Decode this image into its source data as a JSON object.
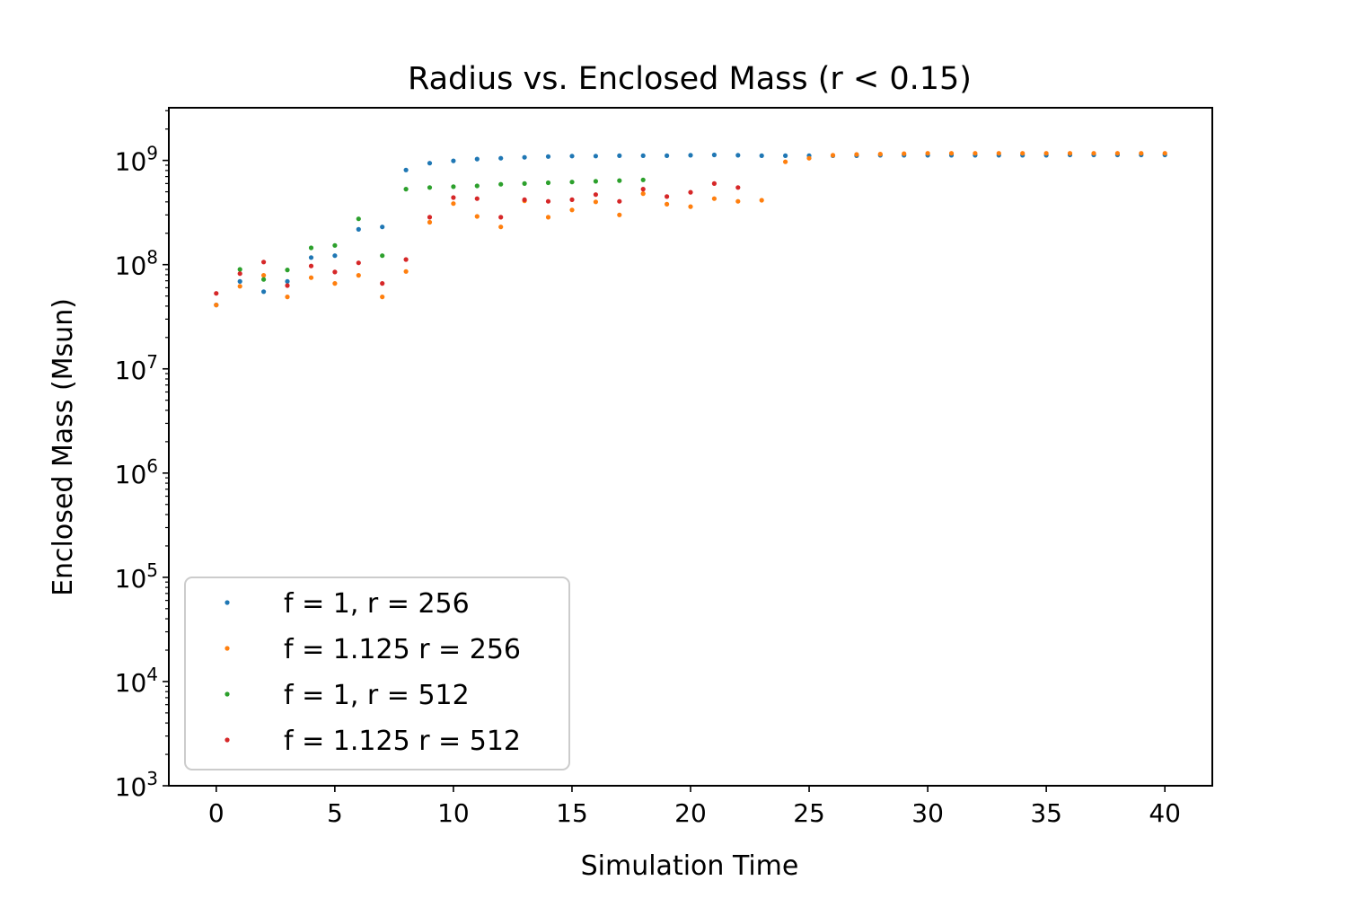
{
  "chart_data": {
    "type": "scatter",
    "title": "Radius vs. Enclosed Mass (r < 0.15)",
    "xlabel": "Simulation Time",
    "ylabel": "Enclosed Mass (Msun)",
    "xlim": [
      -2,
      42
    ],
    "ylim": [
      1000,
      3200000000
    ],
    "yscale": "log",
    "grid": false,
    "legend_position": "lower-left",
    "x_ticks": [
      0,
      5,
      10,
      15,
      20,
      25,
      30,
      35,
      40
    ],
    "x_tick_labels": [
      "0",
      "5",
      "10",
      "15",
      "20",
      "25",
      "30",
      "35",
      "40"
    ],
    "y_ticks": [
      1000,
      10000,
      100000,
      1000000,
      10000000,
      100000000,
      1000000000
    ],
    "y_tick_labels": [
      {
        "base": "10",
        "exp": "3"
      },
      {
        "base": "10",
        "exp": "4"
      },
      {
        "base": "10",
        "exp": "5"
      },
      {
        "base": "10",
        "exp": "6"
      },
      {
        "base": "10",
        "exp": "7"
      },
      {
        "base": "10",
        "exp": "8"
      },
      {
        "base": "10",
        "exp": "9"
      }
    ],
    "series": [
      {
        "name": "f = 1, r = 256",
        "color": "#1f77b4",
        "points": [
          [
            0,
            41000000
          ],
          [
            1,
            69000000
          ],
          [
            2,
            55000000
          ],
          [
            3,
            69000000
          ],
          [
            4,
            117000000
          ],
          [
            5,
            122000000
          ],
          [
            6,
            218000000
          ],
          [
            7,
            230000000
          ],
          [
            8,
            810000000
          ],
          [
            9,
            940000000
          ],
          [
            10,
            990000000
          ],
          [
            11,
            1030000000
          ],
          [
            12,
            1050000000
          ],
          [
            13,
            1070000000
          ],
          [
            14,
            1090000000
          ],
          [
            15,
            1100000000
          ],
          [
            16,
            1100000000
          ],
          [
            17,
            1110000000
          ],
          [
            18,
            1110000000
          ],
          [
            19,
            1110000000
          ],
          [
            20,
            1120000000
          ],
          [
            21,
            1130000000
          ],
          [
            22,
            1120000000
          ],
          [
            23,
            1110000000
          ],
          [
            24,
            1110000000
          ],
          [
            25,
            1110000000
          ],
          [
            26,
            1110000000
          ],
          [
            27,
            1110000000
          ],
          [
            28,
            1120000000
          ],
          [
            29,
            1120000000
          ],
          [
            30,
            1120000000
          ],
          [
            31,
            1120000000
          ],
          [
            32,
            1120000000
          ],
          [
            33,
            1120000000
          ],
          [
            34,
            1120000000
          ],
          [
            35,
            1120000000
          ],
          [
            36,
            1130000000
          ],
          [
            37,
            1130000000
          ],
          [
            38,
            1130000000
          ],
          [
            39,
            1130000000
          ],
          [
            40,
            1130000000
          ]
        ]
      },
      {
        "name": "f = 1.125 r = 256",
        "color": "#ff7f0e",
        "points": [
          [
            0,
            41000000
          ],
          [
            1,
            62000000
          ],
          [
            2,
            79000000
          ],
          [
            3,
            49000000
          ],
          [
            4,
            75000000
          ],
          [
            5,
            66000000
          ],
          [
            6,
            79000000
          ],
          [
            7,
            49000000
          ],
          [
            8,
            86000000
          ],
          [
            9,
            255000000
          ],
          [
            10,
            385000000
          ],
          [
            11,
            290000000
          ],
          [
            12,
            230000000
          ],
          [
            13,
            410000000
          ],
          [
            14,
            285000000
          ],
          [
            15,
            335000000
          ],
          [
            16,
            400000000
          ],
          [
            17,
            300000000
          ],
          [
            18,
            480000000
          ],
          [
            19,
            380000000
          ],
          [
            20,
            360000000
          ],
          [
            21,
            430000000
          ],
          [
            22,
            405000000
          ],
          [
            23,
            415000000
          ],
          [
            24,
            970000000
          ],
          [
            25,
            1050000000
          ],
          [
            26,
            1120000000
          ],
          [
            27,
            1140000000
          ],
          [
            28,
            1150000000
          ],
          [
            29,
            1160000000
          ],
          [
            30,
            1170000000
          ],
          [
            31,
            1170000000
          ],
          [
            32,
            1170000000
          ],
          [
            33,
            1170000000
          ],
          [
            34,
            1170000000
          ],
          [
            35,
            1170000000
          ],
          [
            36,
            1170000000
          ],
          [
            37,
            1170000000
          ],
          [
            38,
            1170000000
          ],
          [
            39,
            1170000000
          ],
          [
            40,
            1170000000
          ]
        ]
      },
      {
        "name": "f = 1, r = 512",
        "color": "#2ca02c",
        "points": [
          [
            1,
            90000000
          ],
          [
            2,
            72000000
          ],
          [
            3,
            89000000
          ],
          [
            4,
            145000000
          ],
          [
            5,
            153000000
          ],
          [
            6,
            275000000
          ],
          [
            7,
            122000000
          ],
          [
            8,
            530000000
          ],
          [
            9,
            550000000
          ],
          [
            10,
            560000000
          ],
          [
            11,
            570000000
          ],
          [
            12,
            590000000
          ],
          [
            13,
            600000000
          ],
          [
            14,
            610000000
          ],
          [
            15,
            620000000
          ],
          [
            16,
            630000000
          ],
          [
            17,
            640000000
          ],
          [
            18,
            650000000
          ]
        ]
      },
      {
        "name": "f = 1.125 r = 512",
        "color": "#d62728",
        "points": [
          [
            0,
            53000000
          ],
          [
            1,
            82000000
          ],
          [
            2,
            106000000
          ],
          [
            3,
            63000000
          ],
          [
            4,
            97000000
          ],
          [
            5,
            85000000
          ],
          [
            6,
            104000000
          ],
          [
            7,
            66000000
          ],
          [
            8,
            112000000
          ],
          [
            9,
            285000000
          ],
          [
            10,
            440000000
          ],
          [
            11,
            430000000
          ],
          [
            12,
            285000000
          ],
          [
            13,
            420000000
          ],
          [
            14,
            405000000
          ],
          [
            15,
            420000000
          ],
          [
            16,
            470000000
          ],
          [
            17,
            405000000
          ],
          [
            18,
            530000000
          ],
          [
            19,
            450000000
          ],
          [
            20,
            495000000
          ],
          [
            21,
            600000000
          ],
          [
            22,
            550000000
          ]
        ]
      }
    ]
  }
}
